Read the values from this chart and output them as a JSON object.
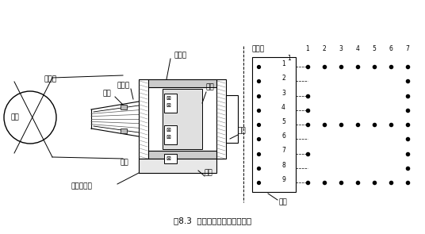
{
  "title": "图8.3  针式打印机的结构原理图",
  "labels": {
    "gunzi": "滚筒",
    "dayinzhi": "打印纸",
    "daogui": "导轨",
    "dayinzhen": "打印针",
    "sedai": "色带",
    "sedaibao": "色带包祇卡",
    "yongcitie": "永磁铁",
    "tixin": "铁芯",
    "hengtie": "衔铁",
    "xianjuan": "线圈",
    "dayintou": "打印头",
    "gangjin": "钢针"
  },
  "rows": [
    "1",
    "2",
    "3",
    "4",
    "5",
    "6",
    "7",
    "8",
    "9"
  ],
  "cols": [
    "1",
    "2",
    "3",
    "4",
    "5",
    "6",
    "7"
  ],
  "dot_pattern": [
    [
      0,
      1,
      2,
      3,
      4,
      5,
      6
    ],
    [
      6
    ],
    [
      0,
      6
    ],
    [
      0,
      6
    ],
    [
      0,
      1,
      2,
      3,
      4,
      5,
      6
    ],
    [
      6
    ],
    [
      0,
      6
    ],
    [
      6
    ],
    [
      0,
      1,
      2,
      3,
      4,
      5,
      6
    ]
  ]
}
